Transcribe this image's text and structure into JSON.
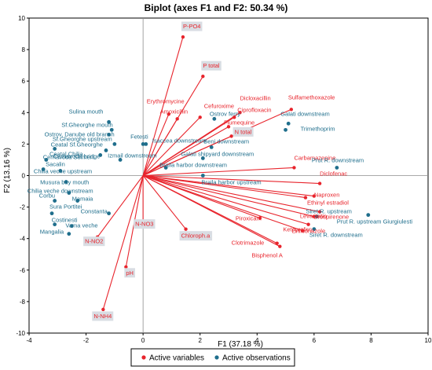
{
  "chart_data": {
    "type": "scatter",
    "title": "Biplot (axes F1 and F2: 50.34 %)",
    "xlabel": "F1 (37.18 %)",
    "ylabel": "F2 (13.16 %)",
    "xlim": [
      -4,
      10
    ],
    "ylim": [
      -10,
      10
    ],
    "x_ticks": [
      -4,
      -2,
      0,
      2,
      4,
      6,
      8,
      10
    ],
    "y_ticks": [
      -10,
      -8,
      -6,
      -4,
      -2,
      0,
      2,
      4,
      6,
      8,
      10
    ],
    "grid": false,
    "legend_position": "bottom",
    "colors": {
      "variables": "#e8242c",
      "observations": "#1f6e8c",
      "boxed_label_bg": "#d9dde3"
    },
    "series": [
      {
        "name": "Active variables",
        "marker": "vector",
        "points": [
          {
            "label": "P-PO4",
            "x": 1.4,
            "y": 8.8,
            "boxed": true
          },
          {
            "label": "P total",
            "x": 2.1,
            "y": 6.3,
            "boxed": true
          },
          {
            "label": "Erythromycine",
            "x": 0.9,
            "y": 3.9,
            "boxed": false
          },
          {
            "label": "Amoxicillin",
            "x": 1.2,
            "y": 3.6,
            "boxed": false
          },
          {
            "label": "Cefuroxime",
            "x": 2.0,
            "y": 3.7,
            "boxed": false
          },
          {
            "label": "Dicloxacillin",
            "x": 3.4,
            "y": 4.0,
            "boxed": false
          },
          {
            "label": "Ciprofloxacin",
            "x": 3.2,
            "y": 3.7,
            "boxed": false
          },
          {
            "label": "Sulfamethoxazole",
            "x": 5.2,
            "y": 4.2,
            "boxed": false
          },
          {
            "label": "Flumequine",
            "x": 3.0,
            "y": 3.1,
            "boxed": false
          },
          {
            "label": "N total",
            "x": 3.1,
            "y": 2.5,
            "boxed": true
          },
          {
            "label": "Carbamazepine",
            "x": 5.3,
            "y": 0.5,
            "boxed": false
          },
          {
            "label": "Diclofenac",
            "x": 6.2,
            "y": -0.5,
            "boxed": false
          },
          {
            "label": "Naproxen",
            "x": 6.0,
            "y": -1.3,
            "boxed": false
          },
          {
            "label": "Ethinyl estradiol",
            "x": 5.7,
            "y": -1.4,
            "boxed": false
          },
          {
            "label": "Drospirenone",
            "x": 6.2,
            "y": -2.3,
            "boxed": false
          },
          {
            "label": "Levastatin",
            "x": 6.0,
            "y": -2.6,
            "boxed": false
          },
          {
            "label": "Enilconazole",
            "x": 5.8,
            "y": -3.1,
            "boxed": false
          },
          {
            "label": "Ketoprofen",
            "x": 5.6,
            "y": -3.5,
            "boxed": false
          },
          {
            "label": "Piroxicam",
            "x": 4.1,
            "y": -2.7,
            "boxed": false
          },
          {
            "label": "Clotrimazole",
            "x": 4.7,
            "y": -4.3,
            "boxed": false
          },
          {
            "label": "Bisphenol A",
            "x": 4.8,
            "y": -4.5,
            "boxed": false
          },
          {
            "label": "N-NO3",
            "x": 0.0,
            "y": -3.0,
            "boxed": true
          },
          {
            "label": "N-NO2",
            "x": -1.6,
            "y": -3.9,
            "boxed": true
          },
          {
            "label": "Chloroph.a",
            "x": 1.5,
            "y": -3.4,
            "boxed": true
          },
          {
            "label": "pH",
            "x": -0.6,
            "y": -5.8,
            "boxed": true
          },
          {
            "label": "N-NH4",
            "x": -1.4,
            "y": -8.5,
            "boxed": true
          }
        ]
      },
      {
        "name": "Active observations",
        "marker": "circle",
        "points": [
          {
            "label": "Sulina mouth",
            "x": -1.2,
            "y": 3.4
          },
          {
            "label": "Sf.Gheorghe mouth",
            "x": -1.1,
            "y": 2.9
          },
          {
            "label": "Ostrov, Danube old branch",
            "x": -1.2,
            "y": 2.6
          },
          {
            "label": "Sf.Gheorghe upstream",
            "x": -1.0,
            "y": 2.0
          },
          {
            "label": "Fetesti",
            "x": 0.0,
            "y": 2.0
          },
          {
            "label": "Ceatal Chilia",
            "x": -1.3,
            "y": 1.6
          },
          {
            "label": "Cernavoda Seimeni",
            "x": -1.5,
            "y": 1.3
          },
          {
            "label": "Izmail downstream",
            "x": -0.8,
            "y": 1.0
          },
          {
            "label": "Cernavoda bridge",
            "x": -3.4,
            "y": 1.0
          },
          {
            "label": "Ceatal Sf.Gheorghe",
            "x": -3.1,
            "y": 1.7
          },
          {
            "label": "Sacalin",
            "x": -3.5,
            "y": 0.4
          },
          {
            "label": "Chilia veche upstream",
            "x": -2.9,
            "y": 0.3
          },
          {
            "label": "Musura bay mouth",
            "x": -2.7,
            "y": -0.4
          },
          {
            "label": "Chilia veche downstream",
            "x": -2.6,
            "y": -1.1
          },
          {
            "label": "Corbu",
            "x": -3.1,
            "y": -1.6
          },
          {
            "label": "Mamaia",
            "x": -2.3,
            "y": -1.6
          },
          {
            "label": "Sura Portitei",
            "x": -3.2,
            "y": -2.4
          },
          {
            "label": "Constanta",
            "x": -1.2,
            "y": -2.4
          },
          {
            "label": "Costinesti",
            "x": -3.1,
            "y": -3.1
          },
          {
            "label": "Vama veche",
            "x": -2.5,
            "y": -3.2
          },
          {
            "label": "Mangalia",
            "x": -2.6,
            "y": -3.7
          },
          {
            "label": "Isaccea downstream",
            "x": 0.1,
            "y": 2.0
          },
          {
            "label": "Ostrov ferry",
            "x": 2.5,
            "y": 3.6
          },
          {
            "label": "Galati downstream",
            "x": 5.1,
            "y": 3.3
          },
          {
            "label": "Trimethoprim",
            "x": 5.0,
            "y": 2.9
          },
          {
            "label": "Beni downstream",
            "x": 2.4,
            "y": 1.8
          },
          {
            "label": "Galati shipyard downstream",
            "x": 2.1,
            "y": 1.1
          },
          {
            "label": "Braila harbor downstream",
            "x": 0.8,
            "y": 0.5
          },
          {
            "label": "Braila harbor upstream",
            "x": 2.1,
            "y": 0.0
          },
          {
            "label": "Prut R. downstream",
            "x": 6.8,
            "y": 0.5
          },
          {
            "label": "Siret R. upstream",
            "x": 6.1,
            "y": -2.6
          },
          {
            "label": "Siret R. downstream",
            "x": 6.0,
            "y": -3.4
          },
          {
            "label": "Prut R. upstream Giurgiulesti",
            "x": 7.9,
            "y": -2.5
          }
        ]
      }
    ]
  },
  "legend": {
    "items": [
      {
        "label": "Active variables",
        "color": "#e8242c"
      },
      {
        "label": "Active observations",
        "color": "#1f6e8c"
      }
    ]
  }
}
